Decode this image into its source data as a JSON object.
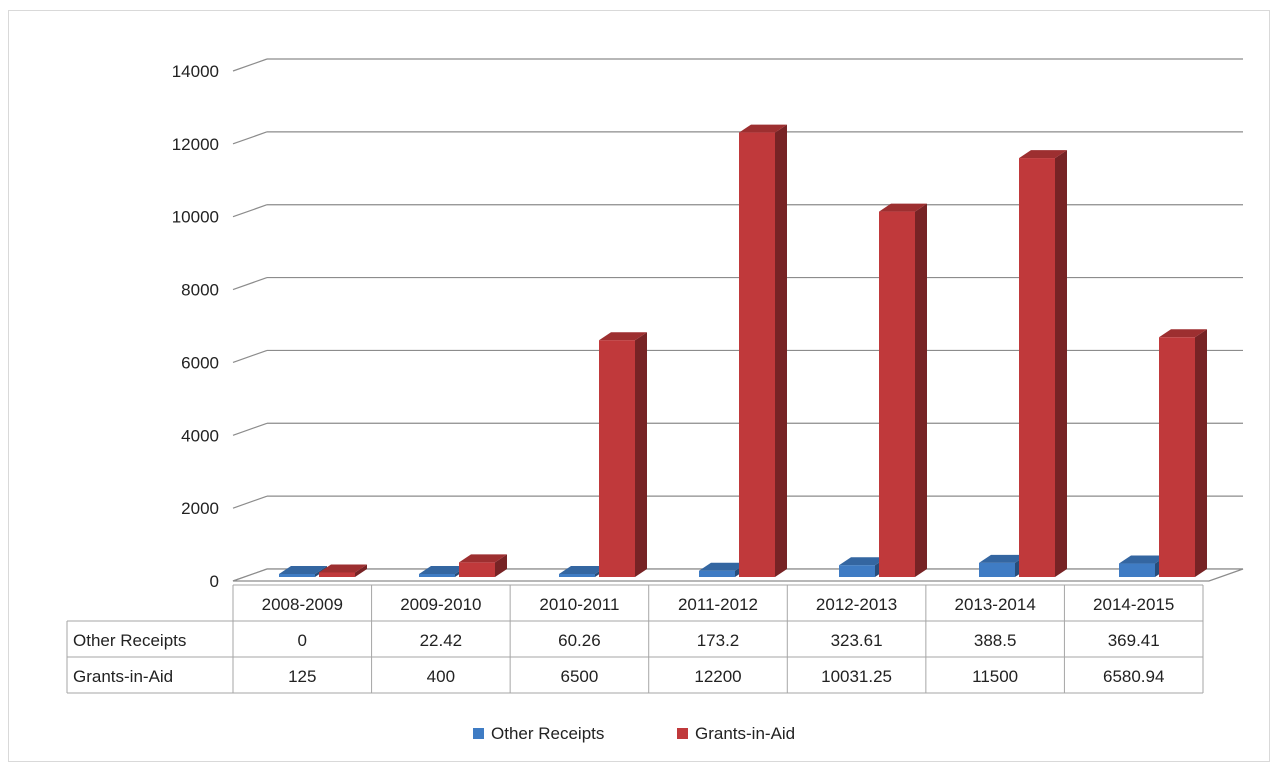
{
  "chart_data": {
    "type": "bar",
    "categories": [
      "2008-2009",
      "2009-2010",
      "2010-2011",
      "2011-2012",
      "2012-2013",
      "2013-2014",
      "2014-2015"
    ],
    "series": [
      {
        "name": "Other Receipts",
        "color": "#3f7cc4",
        "values": [
          0,
          22.42,
          60.26,
          173.2,
          323.61,
          388.5,
          369.41
        ],
        "labels": [
          "0",
          "22.42",
          "60.26",
          "173.2",
          "323.61",
          "388.5",
          "369.41"
        ]
      },
      {
        "name": "Grants-in-Aid",
        "color": "#c0393b",
        "values": [
          125,
          400,
          6500,
          12200,
          10031.25,
          11500,
          6580.94
        ],
        "labels": [
          "125",
          "400",
          "6500",
          "12200",
          "10031.25",
          "11500",
          "6580.94"
        ]
      }
    ],
    "y_ticks": [
      "0",
      "2000",
      "4000",
      "6000",
      "8000",
      "10000",
      "12000",
      "14000"
    ],
    "ylim": [
      0,
      14000
    ],
    "grid": true,
    "style": "3d-column-with-data-table",
    "legend_position": "bottom"
  }
}
